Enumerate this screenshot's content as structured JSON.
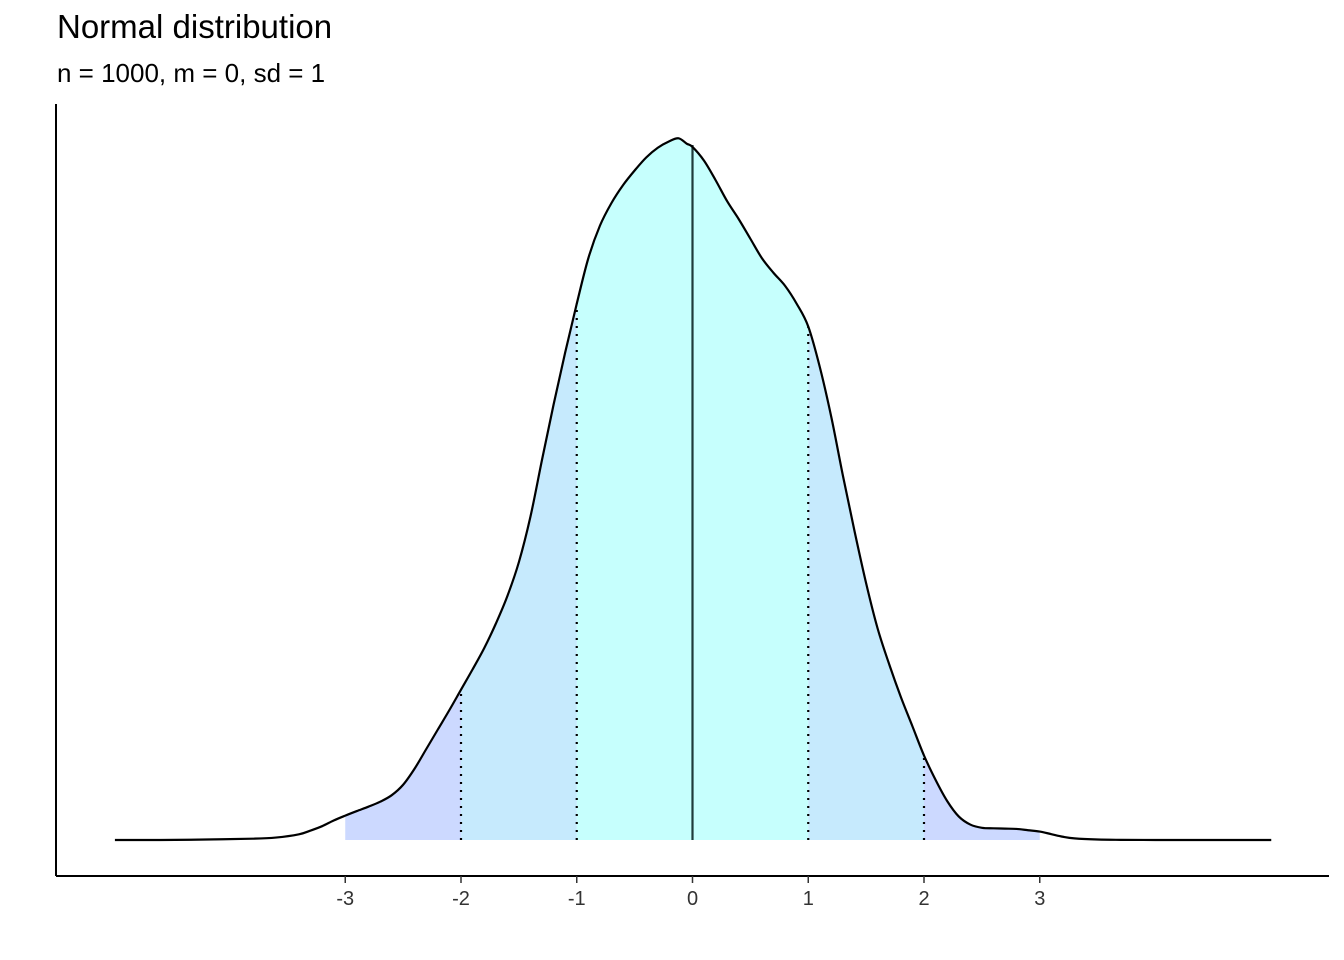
{
  "chart_data": {
    "type": "area",
    "title": "Normal distribution",
    "subtitle": "n = 1000, m = 0, sd = 1",
    "xlabel": "",
    "ylabel": "",
    "xlim": [
      -4.99,
      5.0
    ],
    "ylim": [
      0,
      0.432
    ],
    "x_ticks": [
      -3,
      -2,
      -1,
      0,
      1,
      2,
      3
    ],
    "x_tick_labels": [
      "-3",
      "-2",
      "-1",
      "0",
      "1",
      "2",
      "3"
    ],
    "grid": false,
    "legend": "none",
    "mean_line": 0,
    "sd_lines": [
      -2,
      -1,
      1,
      2
    ],
    "density": {
      "x": [
        -4.99,
        -4.6,
        -4.2,
        -3.8,
        -3.6,
        -3.4,
        -3.3,
        -3.2,
        -3.1,
        -3.0,
        -2.9,
        -2.8,
        -2.7,
        -2.6,
        -2.5,
        -2.4,
        -2.3,
        -2.2,
        -2.1,
        -2.0,
        -1.9,
        -1.8,
        -1.7,
        -1.6,
        -1.5,
        -1.4,
        -1.3,
        -1.2,
        -1.1,
        -1.0,
        -0.9,
        -0.8,
        -0.7,
        -0.6,
        -0.5,
        -0.4,
        -0.3,
        -0.2,
        -0.12,
        -0.05,
        0.0,
        0.1,
        0.2,
        0.3,
        0.4,
        0.5,
        0.6,
        0.7,
        0.8,
        0.9,
        1.0,
        1.1,
        1.2,
        1.3,
        1.4,
        1.5,
        1.6,
        1.7,
        1.8,
        1.9,
        2.0,
        2.1,
        2.2,
        2.3,
        2.4,
        2.5,
        2.6,
        2.7,
        2.8,
        2.9,
        3.0,
        3.1,
        3.2,
        3.3,
        3.5,
        3.7,
        4.0,
        4.5,
        5.0
      ],
      "y": [
        0.0,
        0.0,
        0.0003,
        0.0008,
        0.0015,
        0.0035,
        0.0058,
        0.0085,
        0.012,
        0.015,
        0.0178,
        0.0205,
        0.0235,
        0.0275,
        0.034,
        0.044,
        0.056,
        0.068,
        0.08,
        0.0925,
        0.105,
        0.118,
        0.133,
        0.15,
        0.171,
        0.199,
        0.234,
        0.268,
        0.3,
        0.33,
        0.358,
        0.378,
        0.392,
        0.403,
        0.412,
        0.42,
        0.426,
        0.43,
        0.4318,
        0.4285,
        0.4265,
        0.418,
        0.406,
        0.393,
        0.382,
        0.37,
        0.358,
        0.349,
        0.341,
        0.33,
        0.316,
        0.291,
        0.26,
        0.224,
        0.19,
        0.158,
        0.13,
        0.108,
        0.088,
        0.07,
        0.052,
        0.037,
        0.024,
        0.0145,
        0.0095,
        0.0075,
        0.0072,
        0.007,
        0.0068,
        0.006,
        0.0052,
        0.0036,
        0.002,
        0.001,
        0.0003,
        0.0001,
        0.0,
        0.0,
        0.0
      ]
    },
    "fill_bands": [
      {
        "from": -1,
        "to": 1,
        "color": "#c6fffd"
      },
      {
        "from": -2,
        "to": -1,
        "color": "#c6eafd"
      },
      {
        "from": 1,
        "to": 2,
        "color": "#c6eafd"
      },
      {
        "from": -3,
        "to": -2,
        "color": "#ccd9ff"
      },
      {
        "from": 2,
        "to": 3,
        "color": "#ccd9ff"
      }
    ],
    "line_color": "#000000",
    "mean_line_color": "#1e3b3b"
  }
}
